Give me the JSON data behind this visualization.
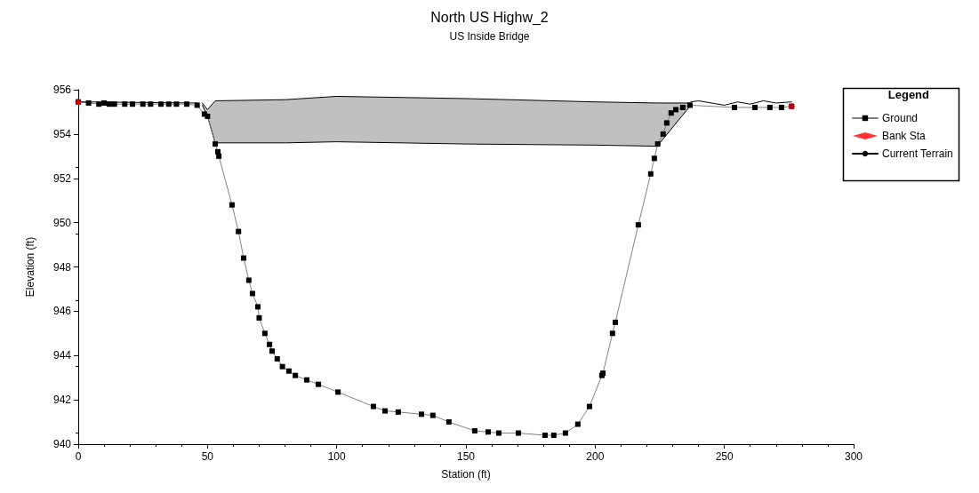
{
  "chart_data": {
    "type": "line",
    "title": "North US Highw_2",
    "subtitle": "US Inside Bridge",
    "xlabel": "Station (ft)",
    "ylabel": "Elevation (ft)",
    "legend_title": "Legend",
    "legend": "right",
    "grid": false,
    "xlim": [
      0,
      300
    ],
    "xticks": [
      0,
      50,
      100,
      150,
      200,
      250,
      300
    ],
    "ylim": [
      940,
      956
    ],
    "yticks": [
      940,
      942,
      944,
      946,
      948,
      950,
      952,
      954,
      956
    ],
    "series": [
      {
        "type": "line",
        "color": "#000000",
        "marker": "none",
        "x": [
          48,
          50,
          53,
          80,
          100,
          150,
          200,
          224,
          237
        ],
        "values": [
          955.4,
          955.1,
          955.5,
          955.55,
          955.7,
          955.6,
          955.45,
          955.4,
          955.4
        ],
        "upper": [
          955.4,
          955.1,
          955.5,
          955.55,
          955.7,
          955.6,
          955.45,
          955.4,
          955.4
        ],
        "lower": [
          955.3,
          954.8,
          953.6,
          953.6,
          953.65,
          953.55,
          953.5,
          953.45,
          955.3
        ]
      },
      {
        "type": "line",
        "color": "#000000",
        "marker": "none",
        "x": [
          48,
          50,
          53,
          80,
          100,
          150,
          200,
          224,
          237
        ],
        "values": [
          955.3,
          954.8,
          953.6,
          953.6,
          953.65,
          953.55,
          953.5,
          953.45,
          955.3
        ]
      },
      {
        "name": "Ground",
        "color": "#000000",
        "marker": "square",
        "line_style": "solid",
        "x": [
          0,
          4,
          8,
          10,
          12,
          14,
          18,
          21,
          25,
          28,
          32,
          35,
          38,
          42,
          46,
          48.8,
          50,
          53,
          54,
          54.4,
          59.5,
          62,
          64,
          66,
          67.4,
          69.5,
          70,
          72.2,
          74,
          75,
          77,
          79,
          81.5,
          84,
          88.4,
          92.9,
          100.5,
          114.2,
          118.7,
          123.8,
          132.8,
          137.2,
          143.4,
          153.4,
          158.6,
          162.7,
          170.3,
          180.6,
          184,
          188.5,
          193.3,
          197.8,
          202.6,
          203,
          206.7,
          207.8,
          216.7,
          221.5,
          222.9,
          224.2,
          226.3,
          227.7,
          229.4,
          231.2,
          233.9,
          236.7,
          253.9,
          261.8,
          267.6,
          272.1,
          276
        ],
        "values": [
          955.45,
          955.4,
          955.35,
          955.4,
          955.35,
          955.35,
          955.35,
          955.35,
          955.35,
          955.35,
          955.35,
          955.35,
          955.35,
          955.35,
          955.3,
          954.9,
          954.8,
          953.55,
          953.2,
          953,
          950.8,
          949.6,
          948.4,
          947.4,
          946.8,
          946.2,
          945.7,
          945,
          944.5,
          944.2,
          943.85,
          943.5,
          943.3,
          943.1,
          942.9,
          942.7,
          942.35,
          941.7,
          941.5,
          941.45,
          941.35,
          941.3,
          941,
          940.6,
          940.55,
          940.5,
          940.5,
          940.4,
          940.4,
          940.5,
          940.9,
          941.7,
          943.1,
          943.2,
          945,
          945.5,
          949.9,
          952.2,
          952.9,
          953.55,
          954,
          954.5,
          954.95,
          955.1,
          955.2,
          955.3,
          955.2,
          955.2,
          955.2,
          955.2,
          955.25
        ]
      },
      {
        "name": "Bank Sta",
        "type": "scatter",
        "color": "#ff0000",
        "marker": "diamond",
        "x": [
          0,
          276
        ],
        "values": [
          955.45,
          955.25
        ]
      },
      {
        "name": "Current Terrain",
        "type": "line",
        "color": "#000000",
        "marker": "none",
        "line_style": "solid",
        "x": [
          0,
          46,
          140,
          237,
          240,
          245,
          250,
          255,
          260,
          265,
          270,
          276
        ],
        "values": [
          955.45,
          955.4,
          null,
          955.45,
          955.5,
          955.4,
          955.3,
          955.45,
          955.35,
          955.5,
          955.4,
          955.45
        ]
      }
    ]
  }
}
